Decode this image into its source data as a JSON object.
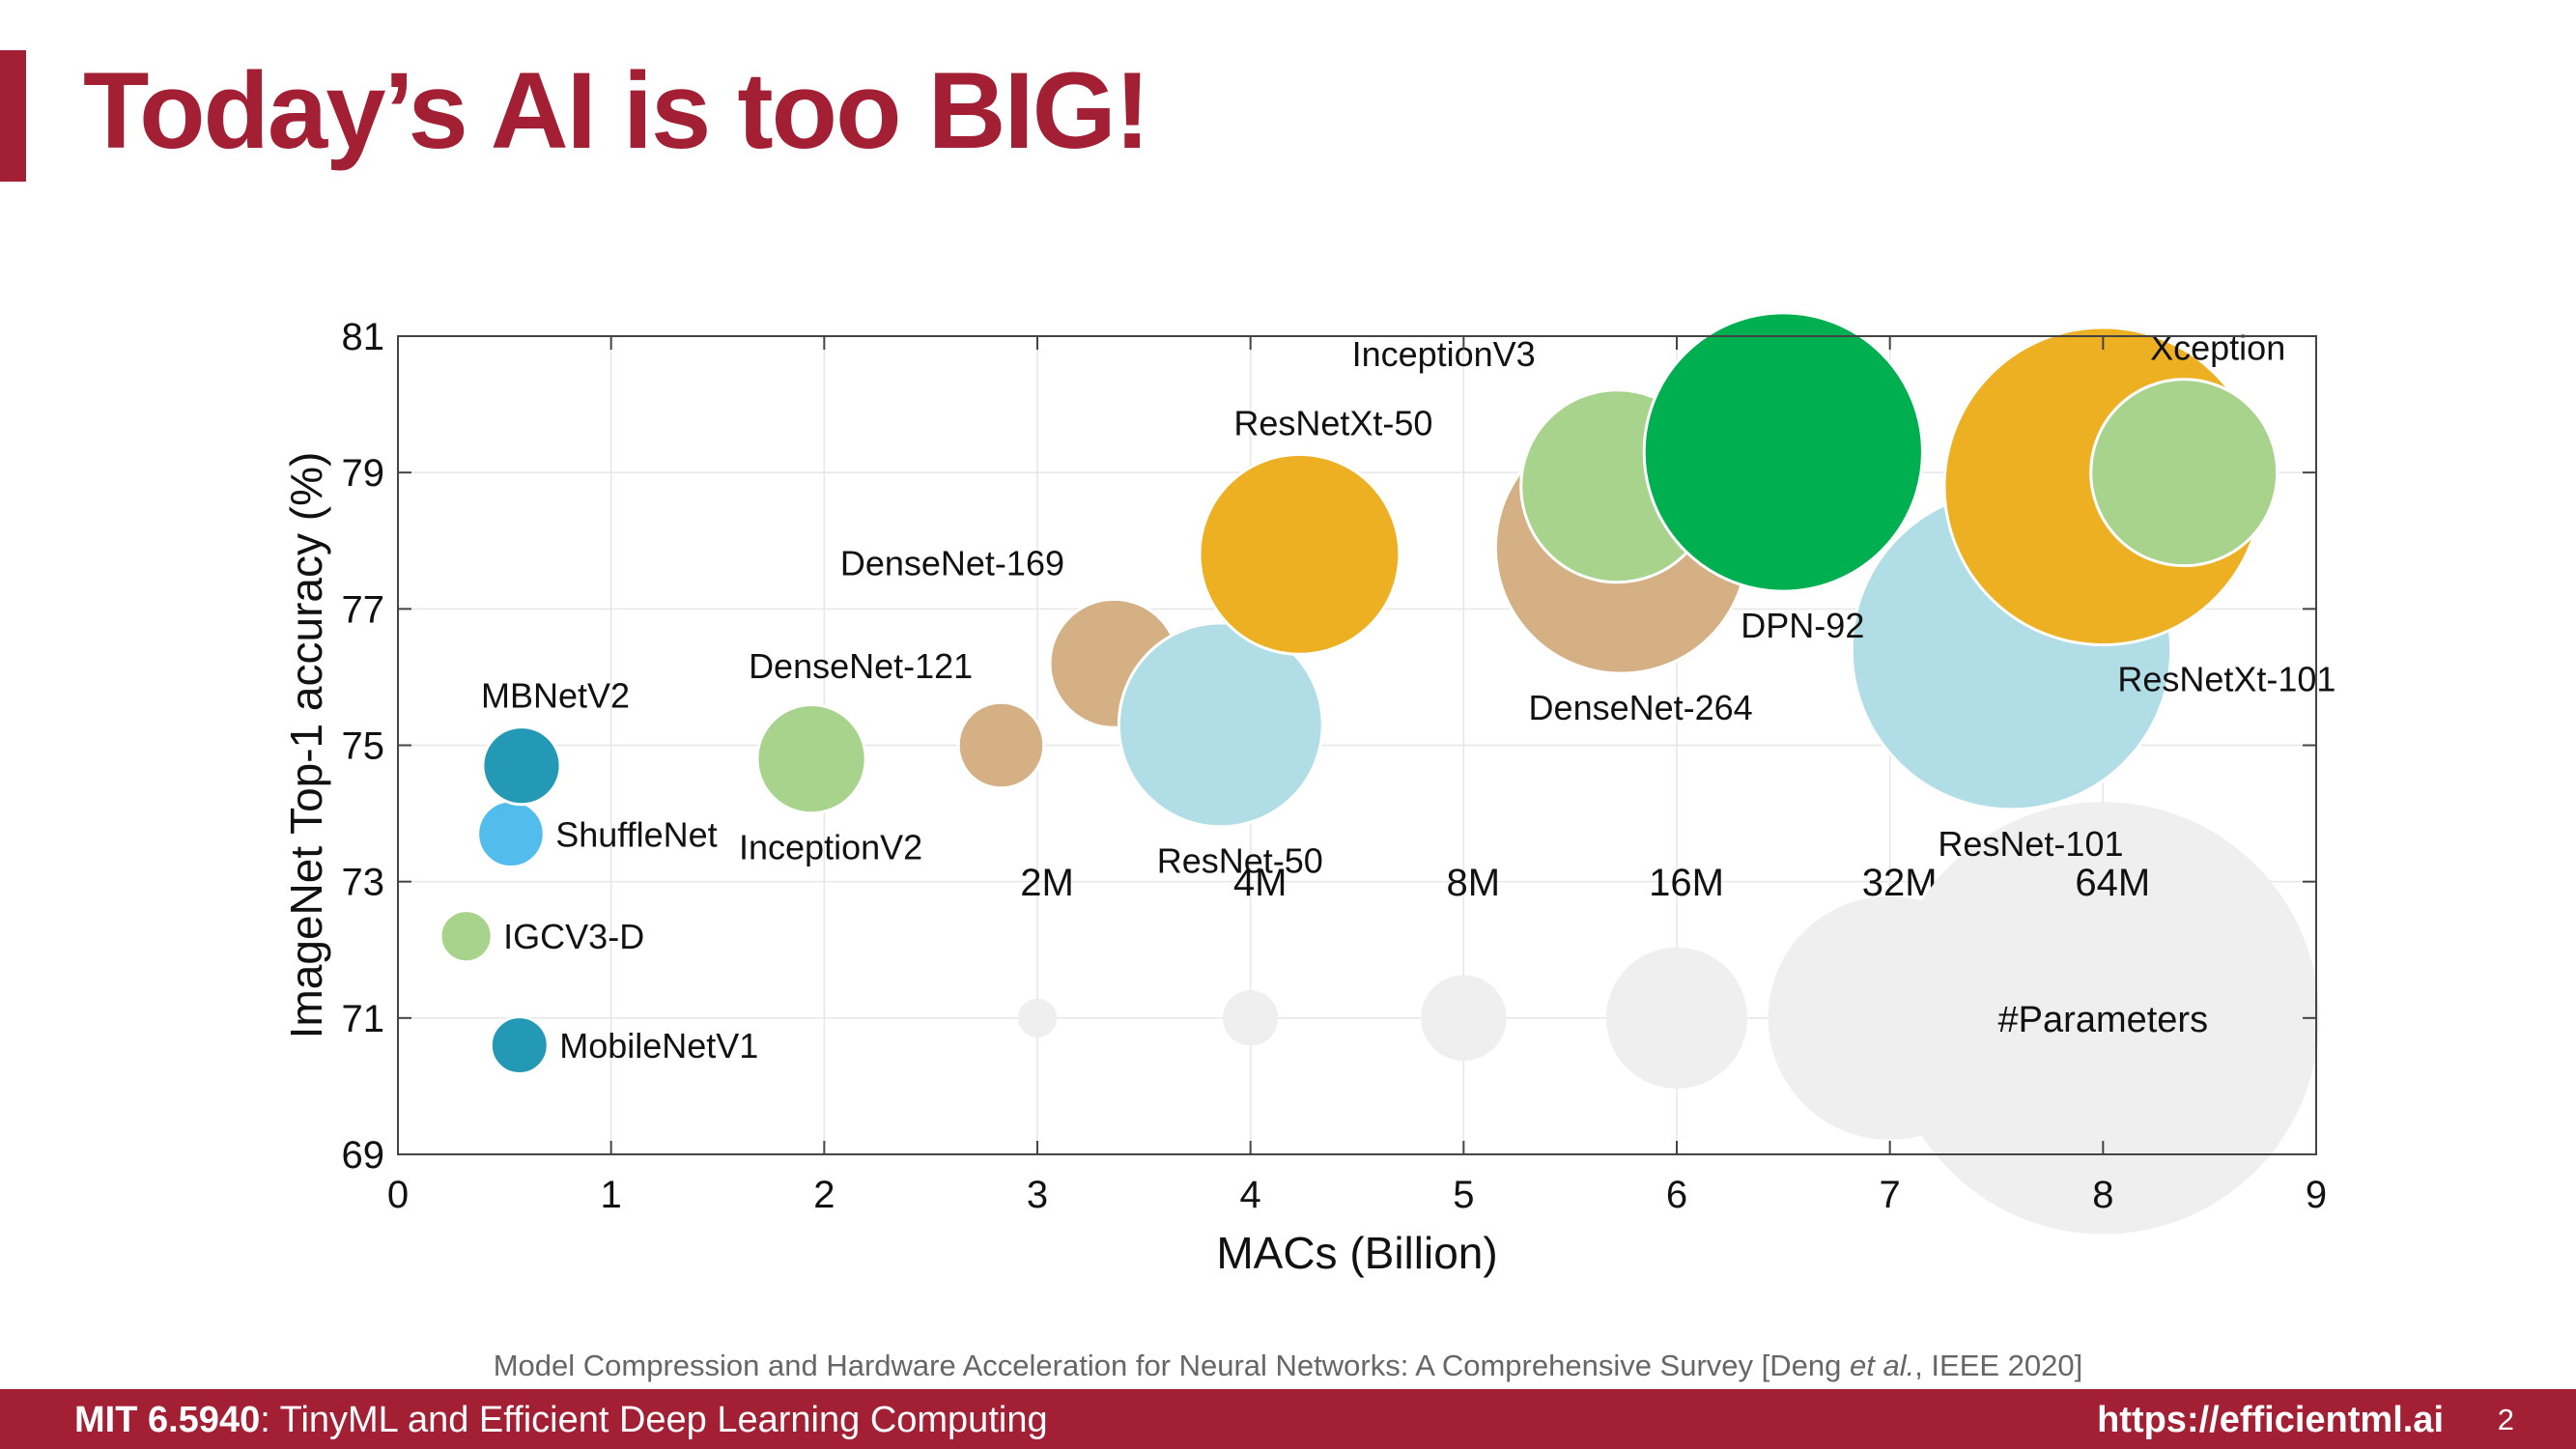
{
  "slide": {
    "title": "Today’s AI is too BIG!",
    "citation_before": "Model Compression and Hardware Acceleration for Neural Networks: A Comprehensive Survey [Deng ",
    "citation_italic": "et al.",
    "citation_after": ", IEEE 2020]",
    "footer_course": "MIT 6.5940",
    "footer_course_title": ": TinyML and Efficient Deep Learning Computing",
    "footer_url": "https://efficientml.ai",
    "page_number": "2"
  },
  "colors": {
    "brand": "#a31f34",
    "mobilenet_blue": "#2499b5",
    "shufflenet_blue": "#52bdec",
    "light_green": "#a8d38d",
    "tan": "#d4b084",
    "light_blue": "#b1dde6",
    "orange": "#ecb022",
    "green": "#00b050",
    "legend_gray": "#efefef"
  },
  "chart_data": {
    "type": "scatter",
    "subtype": "bubble",
    "xlabel": "MACs (Billion)",
    "ylabel": "ImageNet Top-1 accuracy (%)",
    "xlim": [
      0,
      9
    ],
    "ylim": [
      69,
      81
    ],
    "xticks": [
      0,
      1,
      2,
      3,
      4,
      5,
      6,
      7,
      8,
      9
    ],
    "yticks": [
      69,
      71,
      73,
      75,
      77,
      79,
      81
    ],
    "grid": true,
    "size_encoding": "#Parameters",
    "points": [
      {
        "label": "IGCV3-D",
        "x": 0.32,
        "y": 72.2,
        "params_m": 3.5,
        "color": "#a8d38d",
        "label_side": "right"
      },
      {
        "label": "MobileNetV1",
        "x": 0.57,
        "y": 70.6,
        "params_m": 4.2,
        "color": "#2499b5",
        "label_side": "right"
      },
      {
        "label": "ShuffleNet",
        "x": 0.53,
        "y": 73.7,
        "params_m": 5.4,
        "color": "#52bdec",
        "label_side": "right"
      },
      {
        "label": "MBNetV2",
        "x": 0.58,
        "y": 74.7,
        "params_m": 6.9,
        "color": "#2499b5",
        "label_side": "above"
      },
      {
        "label": "InceptionV2",
        "x": 1.94,
        "y": 74.8,
        "params_m": 11.2,
        "color": "#a8d38d",
        "label_side": "below"
      },
      {
        "label": "DenseNet-121",
        "x": 2.83,
        "y": 75.0,
        "params_m": 8.0,
        "color": "#d4b084",
        "label_side": "above-left"
      },
      {
        "label": "DenseNet-169",
        "x": 3.36,
        "y": 76.2,
        "params_m": 14.1,
        "color": "#d4b084",
        "label_side": "above-left"
      },
      {
        "label": "ResNet-50",
        "x": 3.86,
        "y": 75.3,
        "params_m": 25.6,
        "color": "#b1dde6",
        "label_side": "below"
      },
      {
        "label": "ResNetXt-50",
        "x": 4.23,
        "y": 77.8,
        "params_m": 25.0,
        "color": "#ecb022",
        "label_side": "above"
      },
      {
        "label": "DenseNet-264",
        "x": 5.74,
        "y": 77.9,
        "params_m": 33.3,
        "color": "#d4b084",
        "label_side": "below"
      },
      {
        "label": "InceptionV3",
        "x": 5.72,
        "y": 78.8,
        "params_m": 23.8,
        "color": "#a8d38d",
        "label_side": "above-left"
      },
      {
        "label": "DPN-92",
        "x": 6.5,
        "y": 79.3,
        "params_m": 37.7,
        "color": "#00b050",
        "label_side": "below"
      },
      {
        "label": "ResNet-101",
        "x": 7.57,
        "y": 76.4,
        "params_m": 44.5,
        "color": "#b1dde6",
        "label_side": "below"
      },
      {
        "label": "ResNetXt-101",
        "x": 8.0,
        "y": 78.8,
        "params_m": 44.2,
        "color": "#ecb022",
        "label_side": "below-right"
      },
      {
        "label": "Xception",
        "x": 8.38,
        "y": 79.0,
        "params_m": 22.9,
        "color": "#a8d38d",
        "label_side": "above"
      }
    ],
    "size_legend": {
      "title": "#Parameters",
      "y": 71,
      "entries": [
        {
          "label": "2M",
          "x": 3,
          "params_m": 2
        },
        {
          "label": "4M",
          "x": 4,
          "params_m": 4
        },
        {
          "label": "8M",
          "x": 5,
          "params_m": 8
        },
        {
          "label": "16M",
          "x": 6,
          "params_m": 16
        },
        {
          "label": "32M",
          "x": 7,
          "params_m": 32
        },
        {
          "label": "64M",
          "x": 8,
          "params_m": 64
        }
      ]
    }
  }
}
